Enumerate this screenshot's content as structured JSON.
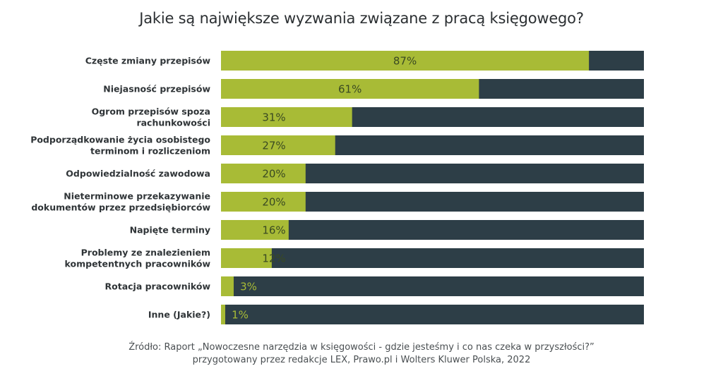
{
  "chart_data": {
    "type": "bar",
    "orientation": "horizontal",
    "stacked_100": true,
    "title": "Jakie są największe wyzwania związane z pracą księgowego?",
    "categories": [
      [
        "Częste zmiany przepisów"
      ],
      [
        "Niejasność przepisów"
      ],
      [
        "Ogrom przepisów spoza",
        "rachunkowości"
      ],
      [
        "Podporządkowanie życia osobistego",
        "terminom i rozliczeniom"
      ],
      [
        "Odpowiedzialność zawodowa"
      ],
      [
        "Nieterminowe przekazywanie",
        "dokumentów przez przedsiębiorców"
      ],
      [
        "Napięte terminy"
      ],
      [
        "Problemy ze znalezieniem",
        "kompetentnych pracowników"
      ],
      [
        "Rotacja pracowników"
      ],
      [
        "Inne (Jakie?)"
      ]
    ],
    "values": [
      87,
      61,
      31,
      27,
      20,
      20,
      16,
      12,
      3,
      1
    ],
    "value_labels": [
      "87%",
      "61%",
      "31%",
      "27%",
      "20%",
      "20%",
      "16%",
      "12%",
      "3%",
      "1%"
    ],
    "xlim": [
      0,
      100
    ],
    "unit": "%",
    "colors": {
      "value": "#a8bb36",
      "remainder": "#2d3e47",
      "label_inside": "#3a4a22",
      "label_on_dark": "#a8bb36"
    },
    "grid": false,
    "legend": "none"
  },
  "source": {
    "line1": "Źródło: Raport „Nowoczesne narzędzia w księgowości - gdzie jesteśmy i co nas czeka w przyszłości?”",
    "line2": "przygotowany przez redakcje LEX, Prawo.pl i Wolters Kluwer Polska, 2022"
  }
}
